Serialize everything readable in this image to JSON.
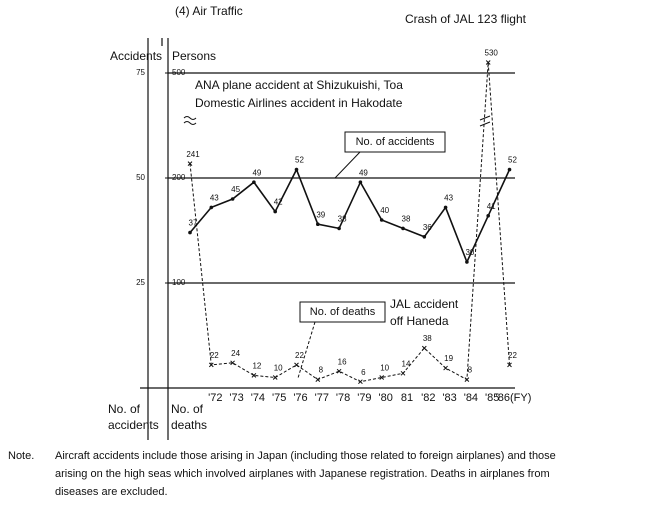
{
  "chart_data": {
    "type": "line",
    "title": "(4)  Air Traffic",
    "y_label": "Accidents",
    "y2_label": "Persons",
    "y_label_bottom": [
      "No. of",
      "accidents"
    ],
    "y2_label_bottom": [
      "No. of",
      "deaths"
    ],
    "categories": [
      null,
      "'72",
      "'73",
      "'74",
      "'75",
      "'76",
      "'77",
      "'78",
      "'79",
      "'80",
      "81",
      "'82",
      "'83",
      "'84",
      "'85",
      "'86(FY)"
    ],
    "series": [
      {
        "name": "No. of accidents",
        "color": "#111111",
        "axis": "y",
        "style": "solid",
        "values": [
          37,
          43,
          45,
          49,
          42,
          52,
          39,
          38,
          49,
          40,
          38,
          36,
          43,
          30,
          41,
          52
        ]
      },
      {
        "name": "No. of deaths",
        "color": "#111111",
        "axis": "y2",
        "style": "dashed",
        "values": [
          241,
          22,
          24,
          12,
          10,
          22,
          8,
          16,
          6,
          10,
          14,
          38,
          19,
          8,
          530,
          22
        ]
      }
    ],
    "ylim": [
      0,
      75
    ],
    "yticks": [
      25,
      50,
      75
    ],
    "y2lim": [
      0,
      530
    ],
    "y2ticks": [
      100,
      200,
      500
    ],
    "grid": true,
    "annotations": {
      "jal123": "Crash of JAL 123 flight",
      "ana": [
        "ANA plane accident at Shizukuishi, Toa",
        "Domestic Airlines accident in Hakodate"
      ],
      "haneda": [
        "JAL accident",
        "off Haneda"
      ]
    },
    "note_label": "Note.",
    "note": [
      "Aircraft accidents include those arising in Japan (including those related to foreign airplanes) and those",
      "arising on the high seas which involved airplanes with Japanese registration. Deaths in airplanes from",
      "diseases are excluded."
    ]
  }
}
